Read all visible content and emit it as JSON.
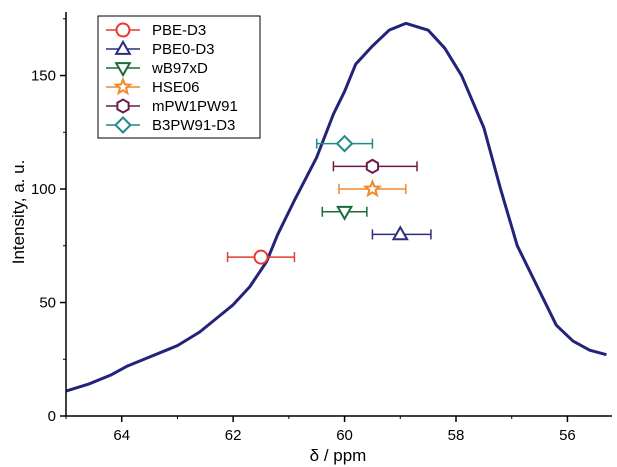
{
  "chart_data": {
    "type": "scatter",
    "title": "",
    "xlabel": "δ / ppm",
    "ylabel": "Intensity, a. u.",
    "xlim": [
      65,
      55.2
    ],
    "ylim": [
      0,
      178
    ],
    "x_reversed": true,
    "x_ticks": [
      64,
      62,
      60,
      58,
      56
    ],
    "y_ticks": [
      0,
      50,
      100,
      150
    ],
    "legend_position": "top-left",
    "grid": false,
    "spectrum": {
      "type": "line",
      "color": "#23237a",
      "x": [
        65.0,
        64.6,
        64.2,
        63.9,
        63.5,
        63.2,
        63.0,
        62.6,
        62.2,
        62.0,
        61.7,
        61.4,
        61.2,
        60.9,
        60.5,
        60.2,
        60.0,
        59.8,
        59.5,
        59.2,
        58.9,
        58.5,
        58.2,
        57.9,
        57.5,
        57.2,
        56.9,
        56.5,
        56.2,
        55.9,
        55.6,
        55.3
      ],
      "y": [
        11,
        14,
        18,
        22,
        26,
        29,
        31,
        37,
        45,
        49,
        57,
        68,
        80,
        95,
        114,
        133,
        143,
        155,
        163,
        170,
        173,
        170,
        162,
        150,
        127,
        100,
        75,
        55,
        40,
        33,
        29,
        27
      ]
    },
    "series": [
      {
        "name": "PBE-D3",
        "marker": "circle",
        "color": "#e8392e",
        "x": 61.5,
        "y": 70,
        "xerr": [
          0.6,
          0.6
        ]
      },
      {
        "name": "PBE0-D3",
        "marker": "triangle-up",
        "color": "#2d2d7a",
        "x": 59.0,
        "y": 80,
        "xerr": [
          0.5,
          0.55
        ]
      },
      {
        "name": "wB97xD",
        "marker": "triangle-down",
        "color": "#1b6b3c",
        "x": 60.0,
        "y": 90,
        "xerr": [
          0.4,
          0.4
        ]
      },
      {
        "name": "HSE06",
        "marker": "star",
        "color": "#f0892d",
        "x": 59.5,
        "y": 100,
        "xerr": [
          0.6,
          0.6
        ]
      },
      {
        "name": "mPW1PW91",
        "marker": "hexagon",
        "color": "#6b1a4b",
        "x": 59.5,
        "y": 110,
        "xerr": [
          0.7,
          0.8
        ]
      },
      {
        "name": "B3PW91-D3",
        "marker": "diamond",
        "color": "#1f8a8a",
        "x": 60.0,
        "y": 120,
        "xerr": [
          0.5,
          0.5
        ]
      }
    ]
  }
}
